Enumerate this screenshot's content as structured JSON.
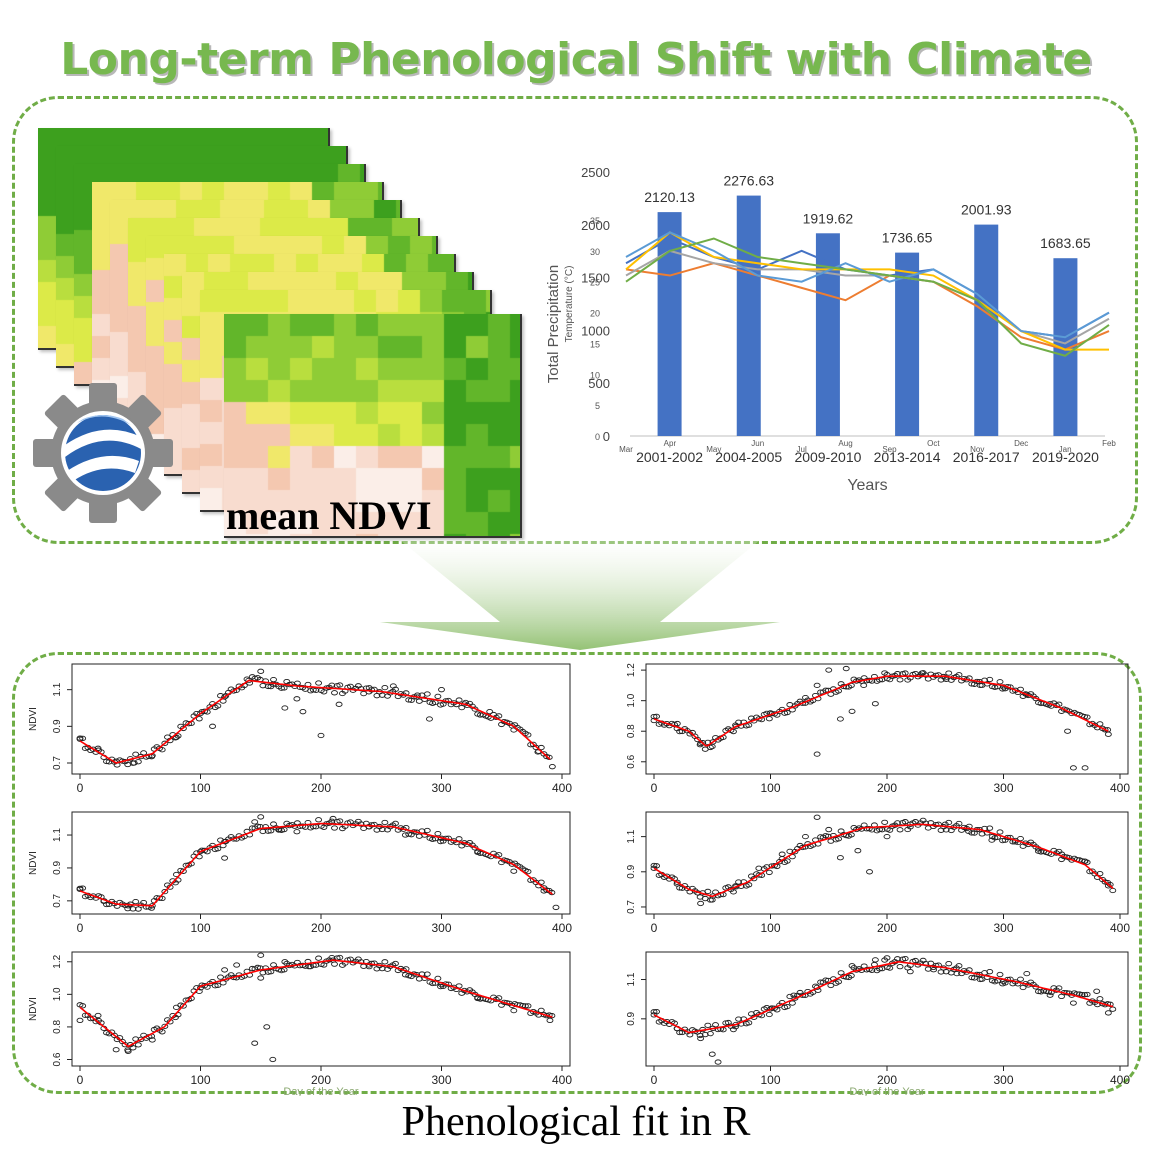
{
  "title": "Long-term Phenological Shift with Climate",
  "ndvi_label": "mean NDVI",
  "bottom_label": "Phenological fit in R",
  "icon": "google-earth-engine-gear-icon",
  "colors": {
    "title": "#77b84f",
    "dash": "#70ad47",
    "bar": "#4472c4",
    "fit": "#ff0000",
    "points": "#222222"
  },
  "chart_data": [
    {
      "type": "bar",
      "title": "",
      "categories": [
        "2001-2002",
        "2004-2005",
        "2009-2010",
        "2013-2014",
        "2016-2017",
        "2019-2020"
      ],
      "values": [
        2120.13,
        2276.63,
        1919.62,
        1736.65,
        2001.93,
        1683.65
      ],
      "data_labels": [
        "2120.13",
        "2276.63",
        "1919.62",
        "1736.65",
        "2001.93",
        "1683.65"
      ],
      "xlabel": "Years",
      "ylabel": "Total Precipitation",
      "ylim": [
        0,
        2500
      ],
      "yticks": [
        "0",
        "500",
        "1000",
        "1500",
        "2000",
        "2500"
      ],
      "overlay": {
        "type": "line",
        "ylabel": "Temperature (°C)",
        "ylim": [
          0,
          35
        ],
        "yticks": [
          "0",
          "5",
          "10",
          "15",
          "20",
          "25",
          "30",
          "35"
        ],
        "categories": [
          "Mar",
          "Apr",
          "May",
          "Jun",
          "Jul",
          "Aug",
          "Sep",
          "Oct",
          "Nov",
          "Dec",
          "Jan",
          "Feb"
        ],
        "series": [
          {
            "color": "#4472c4",
            "values": [
              28,
              32,
              29,
              27,
              30,
              27,
              26,
              27,
              23,
              17,
              16,
              20
            ]
          },
          {
            "color": "#ed7d31",
            "values": [
              27,
              26,
              28,
              26,
              24,
              22,
              26,
              25,
              21,
              16,
              14,
              17
            ]
          },
          {
            "color": "#a5a5a5",
            "values": [
              26,
              30,
              28,
              27,
              27,
              26,
              26,
              25,
              22,
              17,
              15,
              19
            ]
          },
          {
            "color": "#ffc000",
            "values": [
              27,
              33,
              29,
              28,
              27,
              27,
              27,
              26,
              22,
              17,
              14,
              14
            ]
          },
          {
            "color": "#5b9bd5",
            "values": [
              29,
              33,
              30,
              26,
              25,
              28,
              25,
              27,
              23,
              17,
              16,
              20
            ]
          },
          {
            "color": "#70ad47",
            "values": [
              25,
              30,
              32,
              29,
              28,
              27,
              26,
              25,
              22,
              15,
              13,
              18
            ]
          }
        ]
      },
      "grid": false
    },
    {
      "type": "scatter",
      "ylabel": "NDVI",
      "xticks": [
        "0",
        "100",
        "200",
        "300",
        "400"
      ],
      "xlim": [
        0,
        400
      ],
      "yticks": [
        "0.7",
        "0.9",
        "1.1"
      ],
      "ylim": [
        0.64,
        1.24
      ],
      "fit": [
        [
          0,
          0.82
        ],
        [
          30,
          0.7
        ],
        [
          60,
          0.75
        ],
        [
          100,
          0.97
        ],
        [
          140,
          1.15
        ],
        [
          180,
          1.12
        ],
        [
          250,
          1.09
        ],
        [
          320,
          1.02
        ],
        [
          360,
          0.9
        ],
        [
          390,
          0.72
        ]
      ],
      "points": [
        [
          0,
          0.83
        ],
        [
          15,
          0.78
        ],
        [
          30,
          0.71
        ],
        [
          45,
          0.7
        ],
        [
          60,
          0.74
        ],
        [
          80,
          0.84
        ],
        [
          100,
          0.97
        ],
        [
          120,
          1.06
        ],
        [
          140,
          1.15
        ],
        [
          150,
          1.2
        ],
        [
          160,
          1.13
        ],
        [
          170,
          1.0
        ],
        [
          185,
          0.98
        ],
        [
          200,
          0.85
        ],
        [
          215,
          1.02
        ],
        [
          240,
          1.11
        ],
        [
          260,
          1.12
        ],
        [
          280,
          1.07
        ],
        [
          300,
          1.1
        ],
        [
          320,
          1.03
        ],
        [
          340,
          0.98
        ],
        [
          360,
          0.88
        ],
        [
          380,
          0.76
        ],
        [
          392,
          0.68
        ],
        [
          110,
          0.9
        ],
        [
          180,
          1.05
        ],
        [
          290,
          0.94
        ]
      ]
    },
    {
      "type": "scatter",
      "xticks": [
        "0",
        "100",
        "200",
        "300",
        "400"
      ],
      "xlim": [
        0,
        400
      ],
      "yticks": [
        "0.6",
        "0.8",
        "1.0",
        "1.2"
      ],
      "ylim": [
        0.52,
        1.24
      ],
      "fit": [
        [
          0,
          0.88
        ],
        [
          30,
          0.8
        ],
        [
          45,
          0.7
        ],
        [
          70,
          0.83
        ],
        [
          120,
          0.96
        ],
        [
          170,
          1.12
        ],
        [
          200,
          1.16
        ],
        [
          250,
          1.16
        ],
        [
          300,
          1.1
        ],
        [
          350,
          0.95
        ],
        [
          390,
          0.8
        ]
      ],
      "points": [
        [
          0,
          0.87
        ],
        [
          20,
          0.85
        ],
        [
          40,
          0.72
        ],
        [
          50,
          0.7
        ],
        [
          70,
          0.84
        ],
        [
          100,
          0.92
        ],
        [
          130,
          1.02
        ],
        [
          140,
          1.1
        ],
        [
          150,
          1.2
        ],
        [
          160,
          0.88
        ],
        [
          165,
          1.21
        ],
        [
          180,
          1.1
        ],
        [
          190,
          0.98
        ],
        [
          200,
          1.17
        ],
        [
          230,
          1.18
        ],
        [
          250,
          1.15
        ],
        [
          280,
          1.1
        ],
        [
          300,
          1.09
        ],
        [
          320,
          1.04
        ],
        [
          340,
          0.98
        ],
        [
          355,
          0.8
        ],
        [
          360,
          0.56
        ],
        [
          370,
          0.56
        ],
        [
          390,
          0.78
        ],
        [
          140,
          0.65
        ],
        [
          170,
          0.93
        ]
      ]
    },
    {
      "type": "scatter",
      "ylabel": "NDVI",
      "xticks": [
        "0",
        "100",
        "200",
        "300",
        "400"
      ],
      "xlim": [
        0,
        400
      ],
      "yticks": [
        "0.7",
        "0.9",
        "1.1"
      ],
      "ylim": [
        0.62,
        1.24
      ],
      "fit": [
        [
          0,
          0.76
        ],
        [
          30,
          0.68
        ],
        [
          60,
          0.67
        ],
        [
          100,
          1.0
        ],
        [
          150,
          1.14
        ],
        [
          200,
          1.17
        ],
        [
          260,
          1.15
        ],
        [
          320,
          1.05
        ],
        [
          360,
          0.92
        ],
        [
          392,
          0.74
        ]
      ],
      "points": [
        [
          0,
          0.77
        ],
        [
          20,
          0.7
        ],
        [
          40,
          0.67
        ],
        [
          60,
          0.67
        ],
        [
          80,
          0.86
        ],
        [
          100,
          1.0
        ],
        [
          120,
          1.06
        ],
        [
          145,
          1.18
        ],
        [
          150,
          1.21
        ],
        [
          165,
          1.13
        ],
        [
          180,
          1.12
        ],
        [
          210,
          1.2
        ],
        [
          240,
          1.15
        ],
        [
          270,
          1.1
        ],
        [
          300,
          1.08
        ],
        [
          330,
          1.0
        ],
        [
          360,
          0.88
        ],
        [
          385,
          0.76
        ],
        [
          395,
          0.66
        ],
        [
          120,
          0.96
        ]
      ]
    },
    {
      "type": "scatter",
      "xticks": [
        "0",
        "100",
        "200",
        "300",
        "400"
      ],
      "xlim": [
        0,
        400
      ],
      "yticks": [
        "0.7",
        "0.9",
        "1.1"
      ],
      "ylim": [
        0.66,
        1.24
      ],
      "fit": [
        [
          0,
          0.92
        ],
        [
          30,
          0.8
        ],
        [
          50,
          0.76
        ],
        [
          80,
          0.84
        ],
        [
          130,
          1.05
        ],
        [
          180,
          1.15
        ],
        [
          230,
          1.17
        ],
        [
          280,
          1.14
        ],
        [
          330,
          1.04
        ],
        [
          370,
          0.94
        ],
        [
          395,
          0.8
        ]
      ],
      "points": [
        [
          0,
          0.92
        ],
        [
          20,
          0.84
        ],
        [
          40,
          0.72
        ],
        [
          50,
          0.74
        ],
        [
          70,
          0.82
        ],
        [
          90,
          0.92
        ],
        [
          110,
          1.0
        ],
        [
          130,
          1.1
        ],
        [
          140,
          1.21
        ],
        [
          150,
          1.14
        ],
        [
          160,
          0.98
        ],
        [
          175,
          1.02
        ],
        [
          185,
          0.9
        ],
        [
          200,
          1.1
        ],
        [
          220,
          1.17
        ],
        [
          250,
          1.17
        ],
        [
          270,
          1.13
        ],
        [
          290,
          1.08
        ],
        [
          310,
          1.07
        ],
        [
          330,
          1.03
        ],
        [
          350,
          1.0
        ],
        [
          370,
          0.96
        ],
        [
          390,
          0.82
        ]
      ]
    },
    {
      "type": "scatter",
      "ylabel": "NDVI",
      "xlabel": "Day of the Year",
      "xticks": [
        "0",
        "100",
        "200",
        "300",
        "400"
      ],
      "xlim": [
        0,
        400
      ],
      "yticks": [
        "0.6",
        "0.8",
        "1.0",
        "1.2"
      ],
      "ylim": [
        0.56,
        1.26
      ],
      "fit": [
        [
          0,
          0.92
        ],
        [
          20,
          0.8
        ],
        [
          40,
          0.68
        ],
        [
          70,
          0.8
        ],
        [
          100,
          1.05
        ],
        [
          150,
          1.15
        ],
        [
          210,
          1.21
        ],
        [
          260,
          1.17
        ],
        [
          320,
          1.02
        ],
        [
          392,
          0.86
        ]
      ],
      "points": [
        [
          0,
          0.84
        ],
        [
          15,
          0.87
        ],
        [
          30,
          0.66
        ],
        [
          40,
          0.65
        ],
        [
          60,
          0.72
        ],
        [
          80,
          0.92
        ],
        [
          100,
          1.04
        ],
        [
          120,
          1.15
        ],
        [
          130,
          1.18
        ],
        [
          150,
          1.1
        ],
        [
          155,
          0.8
        ],
        [
          160,
          0.6
        ],
        [
          170,
          1.2
        ],
        [
          190,
          1.17
        ],
        [
          210,
          1.21
        ],
        [
          240,
          1.17
        ],
        [
          270,
          1.12
        ],
        [
          300,
          1.06
        ],
        [
          330,
          0.98
        ],
        [
          360,
          0.9
        ],
        [
          390,
          0.84
        ],
        [
          145,
          0.7
        ],
        [
          150,
          1.24
        ]
      ]
    },
    {
      "type": "scatter",
      "xlabel": "Day of the Year",
      "xticks": [
        "0",
        "100",
        "200",
        "300",
        "400"
      ],
      "xlim": [
        0,
        400
      ],
      "yticks": [
        "0.9",
        "1.1"
      ],
      "ylim": [
        0.66,
        1.24
      ],
      "fit": [
        [
          0,
          0.92
        ],
        [
          30,
          0.83
        ],
        [
          70,
          0.87
        ],
        [
          120,
          1.0
        ],
        [
          170,
          1.14
        ],
        [
          210,
          1.19
        ],
        [
          250,
          1.16
        ],
        [
          310,
          1.09
        ],
        [
          360,
          1.02
        ],
        [
          395,
          0.96
        ]
      ],
      "points": [
        [
          0,
          0.92
        ],
        [
          20,
          0.85
        ],
        [
          40,
          0.8
        ],
        [
          50,
          0.72
        ],
        [
          55,
          0.68
        ],
        [
          70,
          0.86
        ],
        [
          100,
          0.95
        ],
        [
          120,
          1.02
        ],
        [
          140,
          1.06
        ],
        [
          170,
          1.17
        ],
        [
          190,
          1.2
        ],
        [
          200,
          1.21
        ],
        [
          220,
          1.14
        ],
        [
          240,
          1.15
        ],
        [
          260,
          1.13
        ],
        [
          280,
          1.1
        ],
        [
          300,
          1.09
        ],
        [
          320,
          1.13
        ],
        [
          340,
          1.02
        ],
        [
          360,
          0.98
        ],
        [
          380,
          1.04
        ],
        [
          390,
          0.93
        ]
      ]
    }
  ]
}
